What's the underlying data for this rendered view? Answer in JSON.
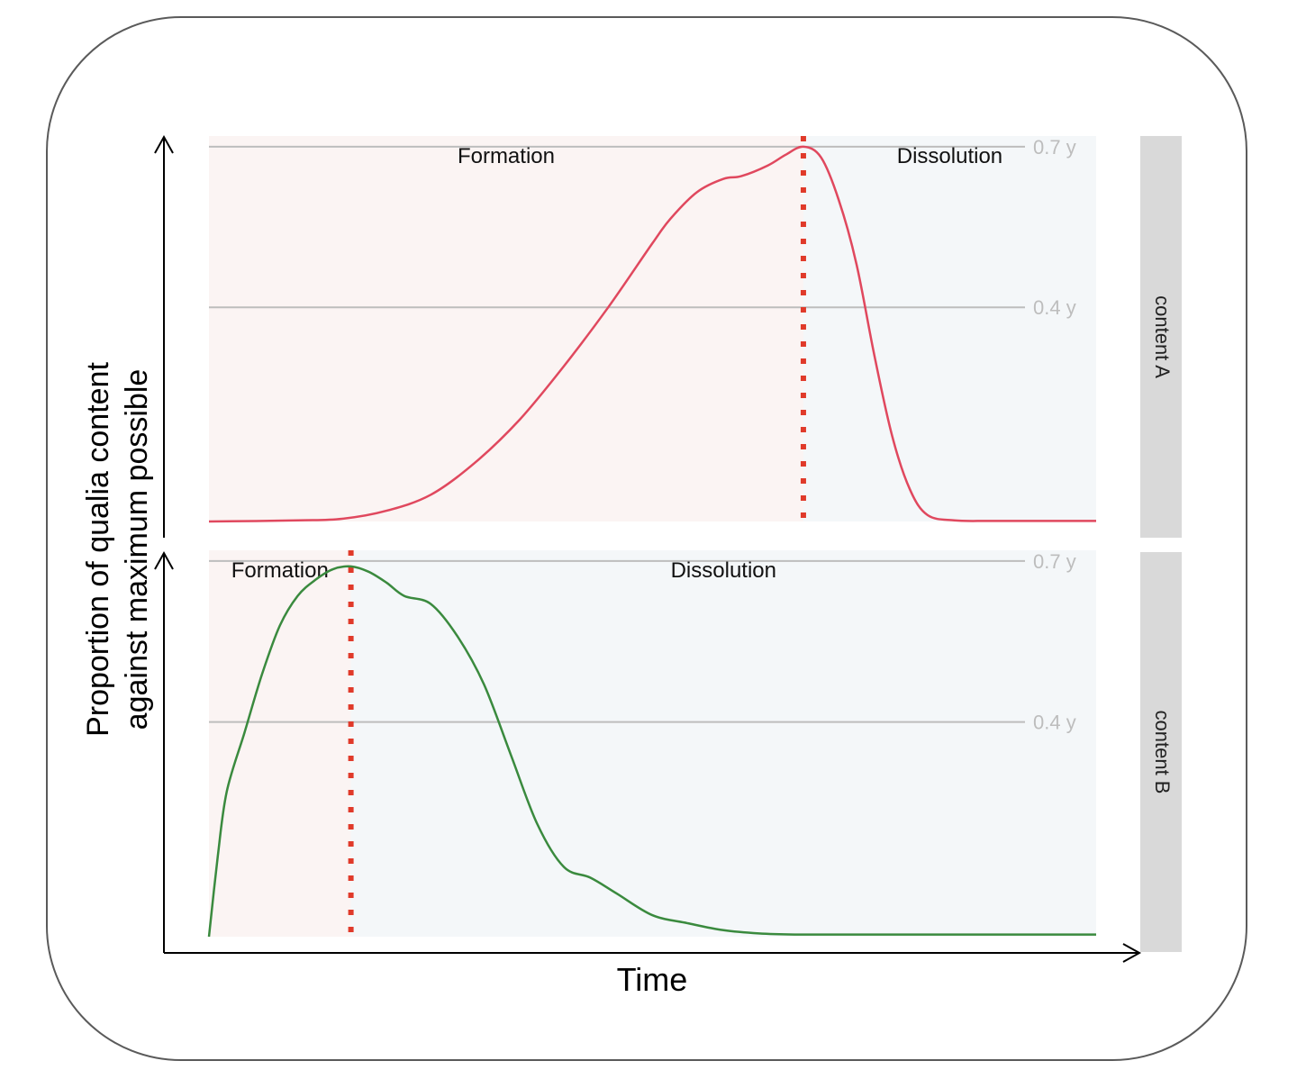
{
  "chart_data": {
    "type": "line",
    "xlabel": "Time",
    "ylabel_lines": [
      "Proportion of qualia content",
      "against maximum possible"
    ],
    "ylim": [
      0,
      0.72
    ],
    "x_range": [
      0,
      100
    ],
    "colors": {
      "formation_bg": "#fbf4f3",
      "dissolution_bg": "#f4f7f9",
      "ref_line": "#bdbdbd",
      "divider": "#e03a2a",
      "strip_bg": "#d9d9d9"
    },
    "panels": [
      {
        "strip_label": "content A",
        "formation_label": "Formation",
        "dissolution_label": "Dissolution",
        "peak_x": 67,
        "line_color": "#e0485e",
        "reference_lines": [
          {
            "value": 0.7,
            "label": "0.7 y"
          },
          {
            "value": 0.4,
            "label": "0.4 y"
          }
        ],
        "series": {
          "x": [
            0,
            10,
            15,
            20,
            25,
            30,
            35,
            40,
            45,
            50,
            52,
            55,
            58,
            60,
            63,
            65,
            67,
            69,
            71,
            73,
            75,
            77,
            79,
            81,
            84,
            88,
            94,
            100
          ],
          "y": [
            0,
            0.002,
            0.005,
            0.02,
            0.05,
            0.11,
            0.19,
            0.29,
            0.4,
            0.52,
            0.565,
            0.615,
            0.64,
            0.645,
            0.665,
            0.685,
            0.7,
            0.68,
            0.6,
            0.48,
            0.31,
            0.16,
            0.06,
            0.012,
            0.002,
            0.001,
            0.001,
            0.001
          ]
        }
      },
      {
        "strip_label": "content B",
        "formation_label": "Formation",
        "dissolution_label": "Dissolution",
        "peak_x": 16,
        "line_color": "#3a8a3e",
        "reference_lines": [
          {
            "value": 0.7,
            "label": "0.7 y"
          },
          {
            "value": 0.4,
            "label": "0.4 y"
          }
        ],
        "series": {
          "x": [
            0,
            1,
            2,
            4,
            6,
            8,
            10,
            12,
            14,
            16,
            18,
            20,
            22,
            25,
            28,
            31,
            34,
            37,
            40,
            43,
            46,
            50,
            54,
            58,
            62,
            66,
            72,
            80,
            90,
            100
          ],
          "y": [
            0,
            0.15,
            0.27,
            0.38,
            0.49,
            0.58,
            0.635,
            0.665,
            0.685,
            0.69,
            0.68,
            0.66,
            0.635,
            0.62,
            0.56,
            0.47,
            0.34,
            0.21,
            0.13,
            0.11,
            0.08,
            0.04,
            0.025,
            0.012,
            0.006,
            0.004,
            0.004,
            0.004,
            0.004,
            0.004
          ]
        }
      }
    ]
  }
}
